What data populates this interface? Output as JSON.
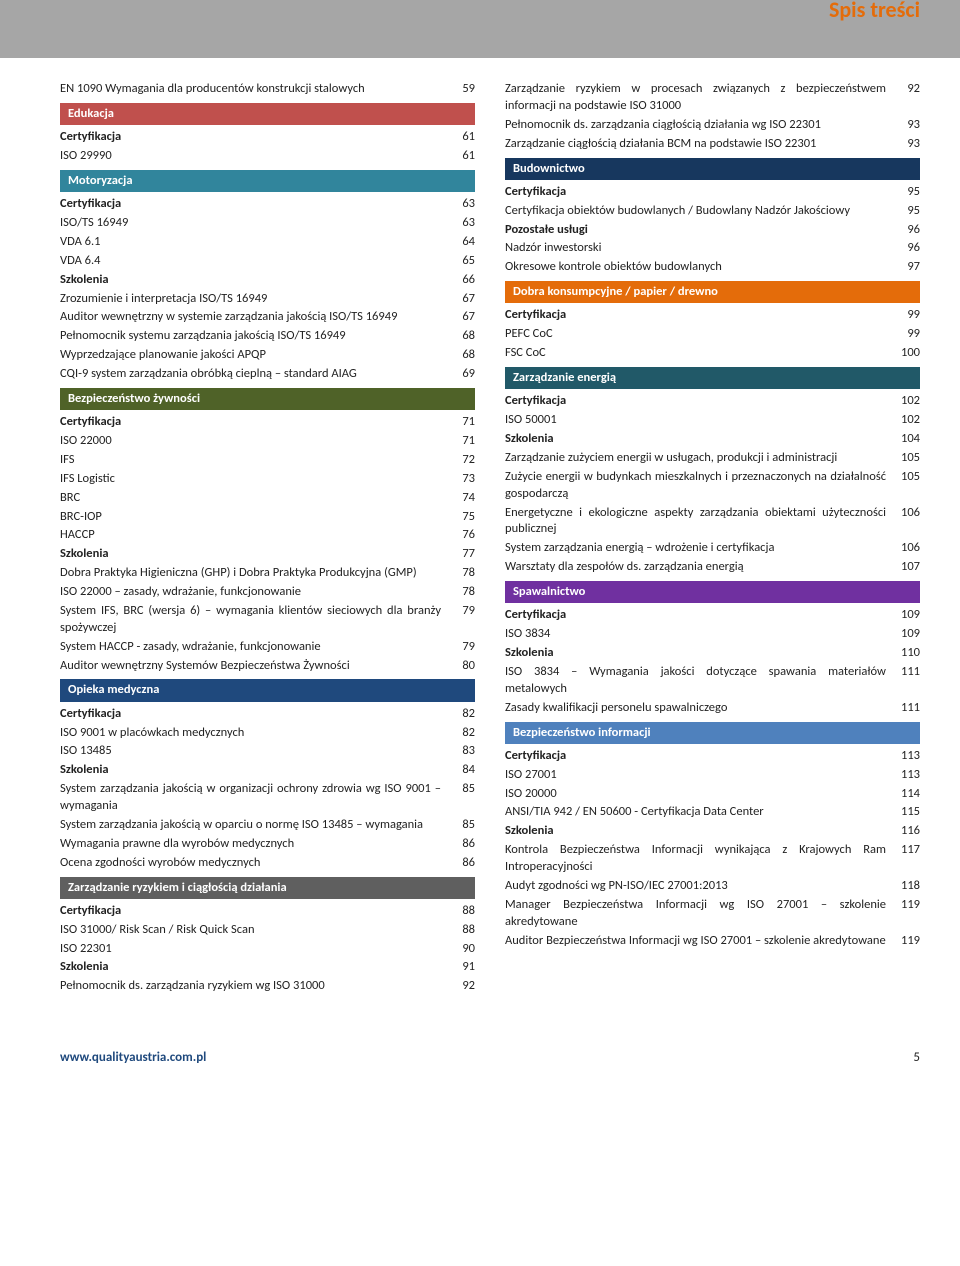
{
  "header": {
    "title": "Spis treści"
  },
  "colors": {
    "edukacja": "#c0504d",
    "motoryzacja": "#31859c",
    "zywnosc": "#4f6228",
    "opieka": "#1f497d",
    "ryzyko": "#5f5f5f",
    "budownictwo": "#17375e",
    "dobra": "#e46c0a",
    "energia": "#215968",
    "spawalnictwo": "#7030a0",
    "informacji": "#4f81bd"
  },
  "left": [
    {
      "type": "row",
      "label": "EN 1090 Wymagania dla producentów konstrukcji stalowych",
      "page": "59"
    },
    {
      "type": "section",
      "label": "Edukacja",
      "colorKey": "edukacja"
    },
    {
      "type": "row",
      "label": "Certyfikacja",
      "page": "61",
      "bold": true
    },
    {
      "type": "row",
      "label": "ISO 29990",
      "page": "61"
    },
    {
      "type": "section",
      "label": "Motoryzacja",
      "colorKey": "motoryzacja"
    },
    {
      "type": "row",
      "label": "Certyfikacja",
      "page": "63",
      "bold": true
    },
    {
      "type": "row",
      "label": "ISO/TS 16949",
      "page": "63"
    },
    {
      "type": "row",
      "label": "VDA 6.1",
      "page": "64"
    },
    {
      "type": "row",
      "label": "VDA 6.4",
      "page": "65"
    },
    {
      "type": "row",
      "label": "Szkolenia",
      "page": "66",
      "bold": true
    },
    {
      "type": "row",
      "label": "Zrozumienie i interpretacja ISO/TS 16949",
      "page": "67"
    },
    {
      "type": "row",
      "label": "Auditor wewnętrzny w systemie zarządzania jakością ISO/TS 16949",
      "page": "67",
      "justify": true
    },
    {
      "type": "row",
      "label": "Pełnomocnik systemu zarządzania jakością ISO/TS 16949",
      "page": "68"
    },
    {
      "type": "row",
      "label": "Wyprzedzające planowanie jakości APQP",
      "page": "68"
    },
    {
      "type": "row",
      "label": "CQI-9 system zarządzania obróbką cieplną – standard AIAG",
      "page": "69"
    },
    {
      "type": "section",
      "label": "Bezpieczeństwo żywności",
      "colorKey": "zywnosc"
    },
    {
      "type": "row",
      "label": "Certyfikacja",
      "page": "71",
      "bold": true
    },
    {
      "type": "row",
      "label": "ISO 22000",
      "page": "71"
    },
    {
      "type": "row",
      "label": "IFS",
      "page": "72"
    },
    {
      "type": "row",
      "label": "IFS Logistic",
      "page": "73"
    },
    {
      "type": "row",
      "label": "BRC",
      "page": "74"
    },
    {
      "type": "row",
      "label": "BRC-IOP",
      "page": "75"
    },
    {
      "type": "row",
      "label": "HACCP",
      "page": "76"
    },
    {
      "type": "row",
      "label": "Szkolenia",
      "page": "77",
      "bold": true
    },
    {
      "type": "row",
      "label": "Dobra Praktyka Higieniczna (GHP) i Dobra Praktyka Produkcyjna (GMP)",
      "page": "78",
      "justify": true
    },
    {
      "type": "row",
      "label": "ISO 22000 – zasady, wdrażanie, funkcjonowanie",
      "page": "78"
    },
    {
      "type": "row",
      "label": "System IFS, BRC (wersja 6) – wymagania klientów sieciowych dla branży spożywczej",
      "page": "79",
      "justify": true
    },
    {
      "type": "row",
      "label": "System HACCP -  zasady, wdrażanie, funkcjonowanie",
      "page": "79"
    },
    {
      "type": "row",
      "label": "Auditor wewnętrzny Systemów Bezpieczeństwa Żywności",
      "page": "80"
    },
    {
      "type": "section",
      "label": "Opieka medyczna",
      "colorKey": "opieka"
    },
    {
      "type": "row",
      "label": "Certyfikacja",
      "page": "82",
      "bold": true
    },
    {
      "type": "row",
      "label": "ISO 9001 w placówkach medycznych",
      "page": "82"
    },
    {
      "type": "row",
      "label": "ISO 13485",
      "page": "83"
    },
    {
      "type": "row",
      "label": "Szkolenia",
      "page": "84",
      "bold": true
    },
    {
      "type": "row",
      "label": "System zarządzania jakością w organizacji ochrony zdrowia wg ISO 9001 – wymagania",
      "page": "85"
    },
    {
      "type": "row",
      "label": "System zarządzania jakością w oparciu o normę ISO 13485 – wymagania",
      "page": "85"
    },
    {
      "type": "row",
      "label": "Wymagania prawne dla wyrobów medycznych",
      "page": "86"
    },
    {
      "type": "row",
      "label": "Ocena zgodności wyrobów medycznych",
      "page": "86"
    },
    {
      "type": "section",
      "label": "Zarządzanie ryzykiem i ciągłością działania",
      "colorKey": "ryzyko"
    },
    {
      "type": "row",
      "label": "Certyfikacja",
      "page": "88",
      "bold": true
    },
    {
      "type": "row",
      "label": "ISO 31000/ Risk Scan / Risk Quick Scan",
      "page": "88"
    },
    {
      "type": "row",
      "label": "ISO 22301",
      "page": "90"
    },
    {
      "type": "row",
      "label": "Szkolenia",
      "page": "91",
      "bold": true
    },
    {
      "type": "row",
      "label": "Pełnomocnik ds. zarządzania ryzykiem wg ISO 31000",
      "page": "92"
    }
  ],
  "right": [
    {
      "type": "row",
      "label": "Zarządzanie ryzykiem w procesach związanych z bezpieczeństwem informacji na podstawie ISO 31000",
      "page": "92",
      "justify": true
    },
    {
      "type": "row",
      "label": "Pełnomocnik ds. zarządzania ciągłością działania wg ISO 22301",
      "page": "93",
      "justify": true
    },
    {
      "type": "row",
      "label": "Zarządzanie ciągłością działania BCM na podstawie ISO 22301",
      "page": "93",
      "justify": true
    },
    {
      "type": "section",
      "label": "Budownictwo",
      "colorKey": "budownictwo"
    },
    {
      "type": "row",
      "label": "Certyfikacja",
      "page": "95",
      "bold": true
    },
    {
      "type": "row",
      "label": "Certyfikacja obiektów budowlanych / Budowlany Nadzór Jakościowy",
      "page": "95",
      "justify": true
    },
    {
      "type": "row",
      "label": "Pozostałe usługi",
      "page": "96",
      "bold": true
    },
    {
      "type": "row",
      "label": "Nadzór inwestorski",
      "page": "96"
    },
    {
      "type": "row",
      "label": "Okresowe kontrole obiektów budowlanych",
      "page": "97"
    },
    {
      "type": "section",
      "label": "Dobra konsumpcyjne / papier / drewno",
      "colorKey": "dobra"
    },
    {
      "type": "row",
      "label": "Certyfikacja",
      "page": "99",
      "bold": true
    },
    {
      "type": "row",
      "label": "PEFC CoC",
      "page": "99"
    },
    {
      "type": "row",
      "label": "FSC CoC",
      "page": "100"
    },
    {
      "type": "section",
      "label": "Zarządzanie energią",
      "colorKey": "energia"
    },
    {
      "type": "row",
      "label": "Certyfikacja",
      "page": "102",
      "bold": true
    },
    {
      "type": "row",
      "label": "ISO 50001",
      "page": "102"
    },
    {
      "type": "row",
      "label": "Szkolenia",
      "page": "104",
      "bold": true
    },
    {
      "type": "row",
      "label": "Zarządzanie zużyciem energii w usługach, produkcji i administracji",
      "page": "105",
      "justify": true
    },
    {
      "type": "row",
      "label": "Zużycie energii w budynkach mieszkalnych i przeznaczonych na działalność gospodarczą",
      "page": "105"
    },
    {
      "type": "row",
      "label": "Energetyczne i ekologiczne aspekty zarządzania obiektami użyteczności publicznej",
      "page": "106",
      "justify": true
    },
    {
      "type": "row",
      "label": "System zarządzania energią – wdrożenie i certyfikacja",
      "page": "106"
    },
    {
      "type": "row",
      "label": "Warsztaty dla zespołów ds. zarządzania energią",
      "page": "107"
    },
    {
      "type": "section",
      "label": "Spawalnictwo",
      "colorKey": "spawalnictwo"
    },
    {
      "type": "row",
      "label": "Certyfikacja",
      "page": "109",
      "bold": true
    },
    {
      "type": "row",
      "label": "ISO 3834",
      "page": "109"
    },
    {
      "type": "row",
      "label": "Szkolenia",
      "page": "110",
      "bold": true
    },
    {
      "type": "row",
      "label": "ISO 3834 – Wymagania jakości dotyczące spawania materiałów metalowych",
      "page": "111",
      "justify": true
    },
    {
      "type": "row",
      "label": "Zasady kwalifikacji personelu spawalniczego",
      "page": "111"
    },
    {
      "type": "section",
      "label": "Bezpieczeństwo informacji",
      "colorKey": "informacji"
    },
    {
      "type": "row",
      "label": "Certyfikacja",
      "page": "113",
      "bold": true
    },
    {
      "type": "row",
      "label": "ISO 27001",
      "page": "113"
    },
    {
      "type": "row",
      "label": "ISO 20000",
      "page": "114"
    },
    {
      "type": "row",
      "label": "ANSI/TIA 942 / EN 50600 - Certyfikacja Data Center",
      "page": "115"
    },
    {
      "type": "row",
      "label": "Szkolenia",
      "page": "116",
      "bold": true
    },
    {
      "type": "row",
      "label": "Kontrola Bezpieczeństwa Informacji wynikająca z Krajowych Ram Introperacyjności",
      "page": "117"
    },
    {
      "type": "row",
      "label": "Audyt zgodności wg PN-ISO/IEC 27001:2013",
      "page": "118"
    },
    {
      "type": "row",
      "label": "Manager Bezpieczeństwa Informacji wg ISO 27001 – szkolenie akredytowane",
      "page": "119",
      "justify": true
    },
    {
      "type": "row",
      "label": "Auditor Bezpieczeństwa Informacji wg ISO 27001 – szkolenie akredytowane",
      "page": "119"
    }
  ],
  "footer": {
    "url": "www.qualityaustria.com.pl",
    "pagenum": "5"
  }
}
